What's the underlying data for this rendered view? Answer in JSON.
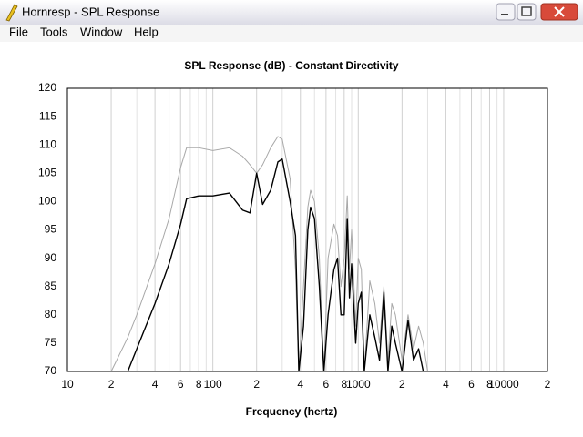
{
  "window": {
    "title": "Hornresp - SPL Response",
    "menu": [
      "File",
      "Tools",
      "Window",
      "Help"
    ]
  },
  "chart_data": {
    "type": "line",
    "title": "SPL Response (dB) - Constant Directivity",
    "xlabel": "Frequency (hertz)",
    "x_scale": "log",
    "xlim": [
      10,
      20000
    ],
    "xticks": [
      10,
      {
        "value": 20,
        "label": "2"
      },
      {
        "value": 40,
        "label": "4"
      },
      {
        "value": 60,
        "label": "6"
      },
      {
        "value": 80,
        "label": "8"
      },
      100,
      {
        "value": 200,
        "label": "2"
      },
      {
        "value": 400,
        "label": "4"
      },
      {
        "value": 600,
        "label": "6"
      },
      {
        "value": 800,
        "label": "8"
      },
      1000,
      {
        "value": 2000,
        "label": "2"
      },
      {
        "value": 4000,
        "label": "4"
      },
      {
        "value": 6000,
        "label": "6"
      },
      {
        "value": 8000,
        "label": "8"
      },
      10000,
      {
        "value": 20000,
        "label": "2"
      }
    ],
    "x_minor_grid": [
      30,
      50,
      70,
      90,
      300,
      500,
      700,
      900,
      3000,
      5000,
      7000,
      9000
    ],
    "grid": true,
    "ylim": [
      70,
      120
    ],
    "yticks": [
      70,
      75,
      80,
      85,
      90,
      95,
      100,
      105,
      110,
      115,
      120
    ],
    "x": [
      20,
      26,
      30,
      40,
      50,
      60,
      66,
      80,
      100,
      130,
      160,
      180,
      200,
      220,
      250,
      280,
      300,
      340,
      370,
      390,
      420,
      450,
      470,
      500,
      540,
      580,
      620,
      680,
      720,
      760,
      800,
      840,
      870,
      900,
      960,
      1000,
      1050,
      1100,
      1200,
      1300,
      1400,
      1500,
      1600,
      1700,
      1800,
      2000,
      2200,
      2400,
      2600,
      2800,
      3000
    ],
    "series": [
      {
        "color": "#a8a8a8",
        "values": [
          70,
          76,
          80,
          89,
          97,
          106,
          109.5,
          109.5,
          109,
          109.5,
          108,
          106.5,
          105,
          106.5,
          109.5,
          111.5,
          111,
          104,
          88,
          70,
          85,
          99,
          102,
          100,
          90,
          70,
          90,
          96,
          94,
          85,
          90,
          101,
          88,
          95,
          78,
          90,
          88,
          70,
          86,
          82,
          75,
          85,
          72,
          82,
          80,
          72,
          80,
          74,
          78,
          75,
          70
        ]
      },
      {
        "color": "#000000",
        "values": [
          null,
          70,
          74,
          82,
          89,
          96,
          100.5,
          101,
          101,
          101.5,
          98.5,
          98,
          105,
          99.5,
          102,
          107,
          107.5,
          100,
          94,
          70,
          78,
          95,
          99,
          97,
          85,
          70,
          80,
          88,
          90,
          80,
          80,
          97,
          83,
          89,
          75,
          82,
          84,
          70,
          80,
          76,
          72,
          84,
          70,
          78,
          75,
          70,
          79,
          72,
          74,
          70,
          70
        ]
      }
    ]
  }
}
